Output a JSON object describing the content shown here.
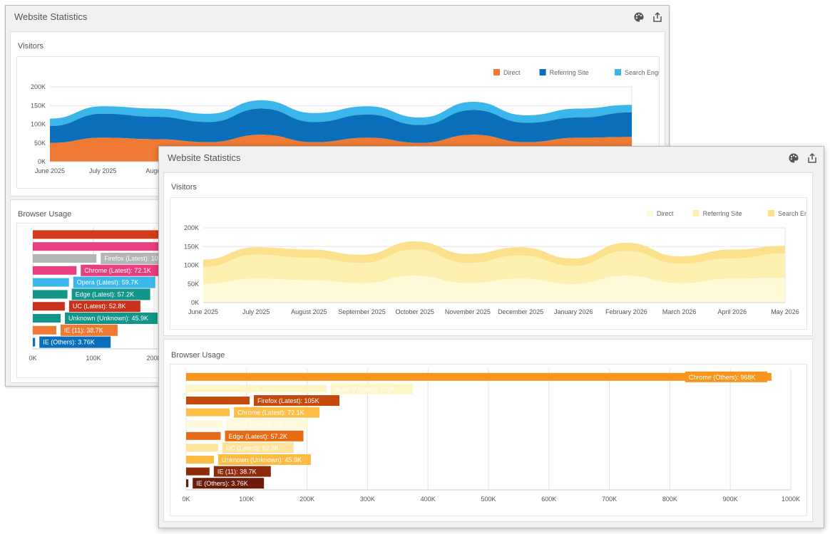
{
  "back_window": {
    "title": "Website Statistics",
    "visitors_title": "Visitors",
    "browser_title": "Browser Usage",
    "legend": [
      {
        "label": "Direct",
        "color": "#ee7a33"
      },
      {
        "label": "Referring Site",
        "color": "#0a6fba"
      },
      {
        "label": "Search Engine",
        "color": "#3bb6ea"
      }
    ],
    "x_labels": [
      "June 2025",
      "July 2025",
      "August"
    ],
    "y_ticks": [
      "0K",
      "50K",
      "100K",
      "150K",
      "200K"
    ],
    "bar_x_ticks": [
      "0K",
      "100K",
      "200K"
    ],
    "bar_labels": [
      "Firefox (Latest): 105",
      "Chrome (Latest): 72.1K",
      "Opera (Latest): 59.7K",
      "Edge (Latest): 57.2K",
      "UC (Latest): 52.8K",
      "Unknown (Unknown): 45.9K",
      "IE (11): 38.7K",
      "IE (Others): 3.76K"
    ],
    "bar_colors": [
      "#d53a1c",
      "#e83e82",
      "#b5b5b5",
      "#e83e82",
      "#3bb6ea",
      "#12968a",
      "#c8321d",
      "#12968a",
      "#ee7a33",
      "#0a6fba"
    ]
  },
  "front_window": {
    "title": "Website Statistics",
    "visitors_title": "Visitors",
    "browser_title": "Browser Usage",
    "legend": [
      {
        "label": "Direct",
        "color": "#fffbd9"
      },
      {
        "label": "Referring Site",
        "color": "#fdf0b1"
      },
      {
        "label": "Search Engine",
        "color": "#fce08b"
      }
    ],
    "x_labels": [
      "June 2025",
      "July 2025",
      "August 2025",
      "September 2025",
      "October 2025",
      "November 2025",
      "December 2025",
      "January 2026",
      "February 2026",
      "March 2026",
      "April 2026",
      "May 2026"
    ],
    "y_ticks": [
      "0K",
      "50K",
      "100K",
      "150K",
      "200K"
    ],
    "bar_x_ticks": [
      "0K",
      "100K",
      "200K",
      "300K",
      "400K",
      "500K",
      "600K",
      "700K",
      "800K",
      "900K",
      "1000K"
    ],
    "bar_colors": [
      "#f7951d",
      "#fff6c8",
      "#c34a0b",
      "#fdbf47",
      "#fffad9",
      "#e86a14",
      "#fde49a",
      "#fdbb43",
      "#8e2a0a",
      "#6e1c0a"
    ],
    "label_colors": [
      "#f7951d",
      "#fff6c8",
      "#c34a0b",
      "#fdbf47",
      "#fffad9",
      "#e86a14",
      "#fde49a",
      "#fdbb43",
      "#8e2a0a",
      "#6e1c0a"
    ],
    "label_text_colors": [
      "#fff",
      "#fff",
      "#fff",
      "#fff",
      "#fff",
      "#fff",
      "#fff",
      "#fff",
      "#fff",
      "#fff"
    ]
  },
  "chart_data": [
    {
      "type": "area",
      "title": "Visitors",
      "stacked": true,
      "x": [
        "June 2025",
        "July 2025",
        "August 2025",
        "September 2025",
        "October 2025",
        "November 2025",
        "December 2025",
        "January 2026",
        "February 2026",
        "March 2026",
        "April 2026",
        "May 2026"
      ],
      "series": [
        {
          "name": "Direct",
          "values": [
            50,
            64,
            60,
            52,
            72,
            52,
            64,
            50,
            72,
            52,
            64,
            66
          ]
        },
        {
          "name": "Referring Site",
          "values": [
            45,
            64,
            60,
            54,
            70,
            54,
            62,
            48,
            66,
            52,
            54,
            66
          ]
        },
        {
          "name": "Search Engine",
          "values": [
            20,
            20,
            22,
            22,
            22,
            24,
            22,
            20,
            22,
            20,
            24,
            20
          ]
        }
      ],
      "ylim": [
        0,
        200
      ],
      "y_unit": "K"
    },
    {
      "type": "bar",
      "orientation": "horizontal",
      "title": "Browser Usage",
      "categories": [
        "Chrome (Others)",
        "Safari (Others)",
        "Firefox (Latest)",
        "Chrome (Latest)",
        "Opera (Latest)",
        "Edge (Latest)",
        "UC (Latest)",
        "Unknown (Unknown)",
        "IE (11)",
        "IE (Others)"
      ],
      "values": [
        968,
        232,
        105,
        72.1,
        59.7,
        57.2,
        52.8,
        45.9,
        38.7,
        3.76
      ],
      "labels": [
        "Chrome (Others): 968K",
        "Safari (Others): 232K",
        "Firefox (Latest): 105K",
        "Chrome (Latest): 72.1K",
        "Opera (Latest): 59.7K",
        "Edge (Latest): 57.2K",
        "UC (Latest): 52.8K",
        "Unknown (Unknown): 45.9K",
        "IE (11): 38.7K",
        "IE (Others): 3.76K"
      ],
      "xlim": [
        0,
        1000
      ],
      "x_unit": "K"
    }
  ]
}
